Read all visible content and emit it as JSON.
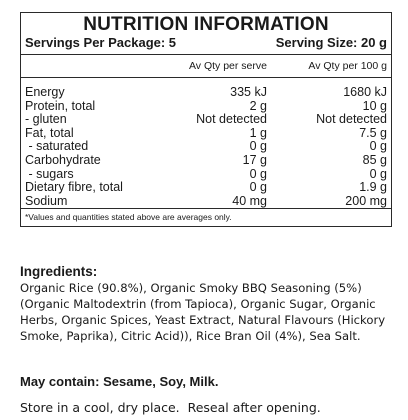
{
  "panel": {
    "title": "NUTRITION INFORMATION",
    "servings_per_package": "Servings Per Package: 5",
    "serving_size": "Serving Size: 20 g",
    "col_per_serve": "Av Qty per serve",
    "col_per_100g": "Av Qty per 100 g",
    "rows": [
      {
        "label": "Energy",
        "serve": "335 kJ",
        "per100": "1680 kJ"
      },
      {
        "label": "Protein, total",
        "serve": "2 g",
        "per100": "10 g"
      },
      {
        "label": "- gluten",
        "serve": "Not detected",
        "per100": "Not detected"
      },
      {
        "label": "Fat, total",
        "serve": "1 g",
        "per100": "7.5 g"
      },
      {
        "label": " - saturated",
        "serve": "0 g",
        "per100": "0 g"
      },
      {
        "label": "Carbohydrate",
        "serve": "17 g",
        "per100": "85 g"
      },
      {
        "label": " - sugars",
        "serve": "0 g",
        "per100": "0 g"
      },
      {
        "label": "Dietary fibre, total",
        "serve": "0 g",
        "per100": "1.9 g"
      },
      {
        "label": "Sodium",
        "serve": "40 mg",
        "per100": "200 mg"
      }
    ],
    "footnote": "*Values and quantities stated above are averages only."
  },
  "ingredients": {
    "heading": "Ingredients:",
    "text": "Organic Rice (90.8%), Organic Smoky BBQ Seasoning (5%) (Organic Maltodextrin (from Tapioca), Organic Sugar, Organic Herbs, Organic Spices, Yeast Extract, Natural Flavours (Hickory Smoke, Paprika), Citric Acid)), Rice Bran Oil (4%), Sea Salt."
  },
  "allergens": "May contain: Sesame, Soy, Milk.",
  "storage": "Store in a cool, dry place.  Reseal after opening."
}
